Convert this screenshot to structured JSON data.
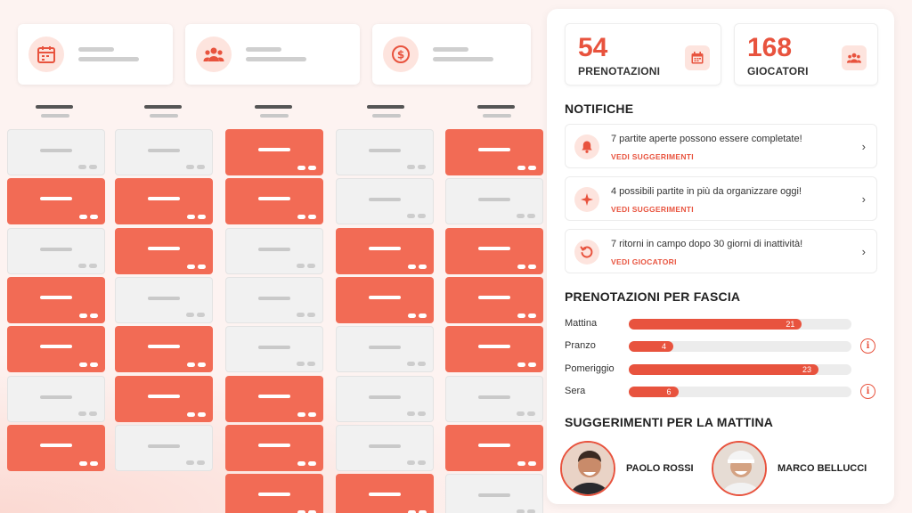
{
  "dashboard": {
    "stat_icons": [
      "calendar-icon",
      "users-icon",
      "dollar-icon"
    ],
    "columns": 5,
    "grid": [
      [
        "free",
        "busy",
        "free",
        "busy",
        "busy",
        "free",
        "busy"
      ],
      [
        "free",
        "busy",
        "busy",
        "free",
        "busy",
        "busy",
        "free"
      ],
      [
        "busy",
        "busy",
        "free",
        "free",
        "free",
        "busy",
        "busy",
        "busy"
      ],
      [
        "free",
        "free",
        "busy",
        "busy",
        "free",
        "free",
        "free",
        "busy"
      ],
      [
        "busy",
        "free",
        "busy",
        "busy",
        "busy",
        "free",
        "busy",
        "free"
      ]
    ]
  },
  "kpis": [
    {
      "value": "54",
      "label": "PRENOTAZIONI",
      "icon": "calendar-icon"
    },
    {
      "value": "168",
      "label": "GIOCATORI",
      "icon": "users-icon"
    }
  ],
  "notifications": {
    "title": "NOTIFICHE",
    "items": [
      {
        "icon": "bell-icon",
        "text": "7 partite aperte possono essere completate!",
        "link": "VEDI SUGGERIMENTI"
      },
      {
        "icon": "sparkle-icon",
        "text": "4 possibili partite  in più da organizzare oggi!",
        "link": "VEDI SUGGERIMENTI"
      },
      {
        "icon": "refresh-icon",
        "text": "7 ritorni in campo dopo 30 giorni di inattività!",
        "link": "VEDI GIOCATORI"
      }
    ]
  },
  "bookings": {
    "title": "PRENOTAZIONI PER FASCIA",
    "max": 27,
    "rows": [
      {
        "label": "Mattina",
        "value": 21,
        "info": false
      },
      {
        "label": "Pranzo",
        "value": 4,
        "info": true
      },
      {
        "label": "Pomeriggio",
        "value": 23,
        "info": false
      },
      {
        "label": "Sera",
        "value": 6,
        "info": true
      }
    ]
  },
  "suggestions": {
    "title": "SUGGERIMENTI PER LA MATTINA",
    "players": [
      {
        "name": "PAOLO ROSSI"
      },
      {
        "name": "MARCO BELLUCCI"
      }
    ]
  },
  "colors": {
    "accent": "#e8533e",
    "busy": "#f26b55",
    "free": "#f1f1f1"
  }
}
